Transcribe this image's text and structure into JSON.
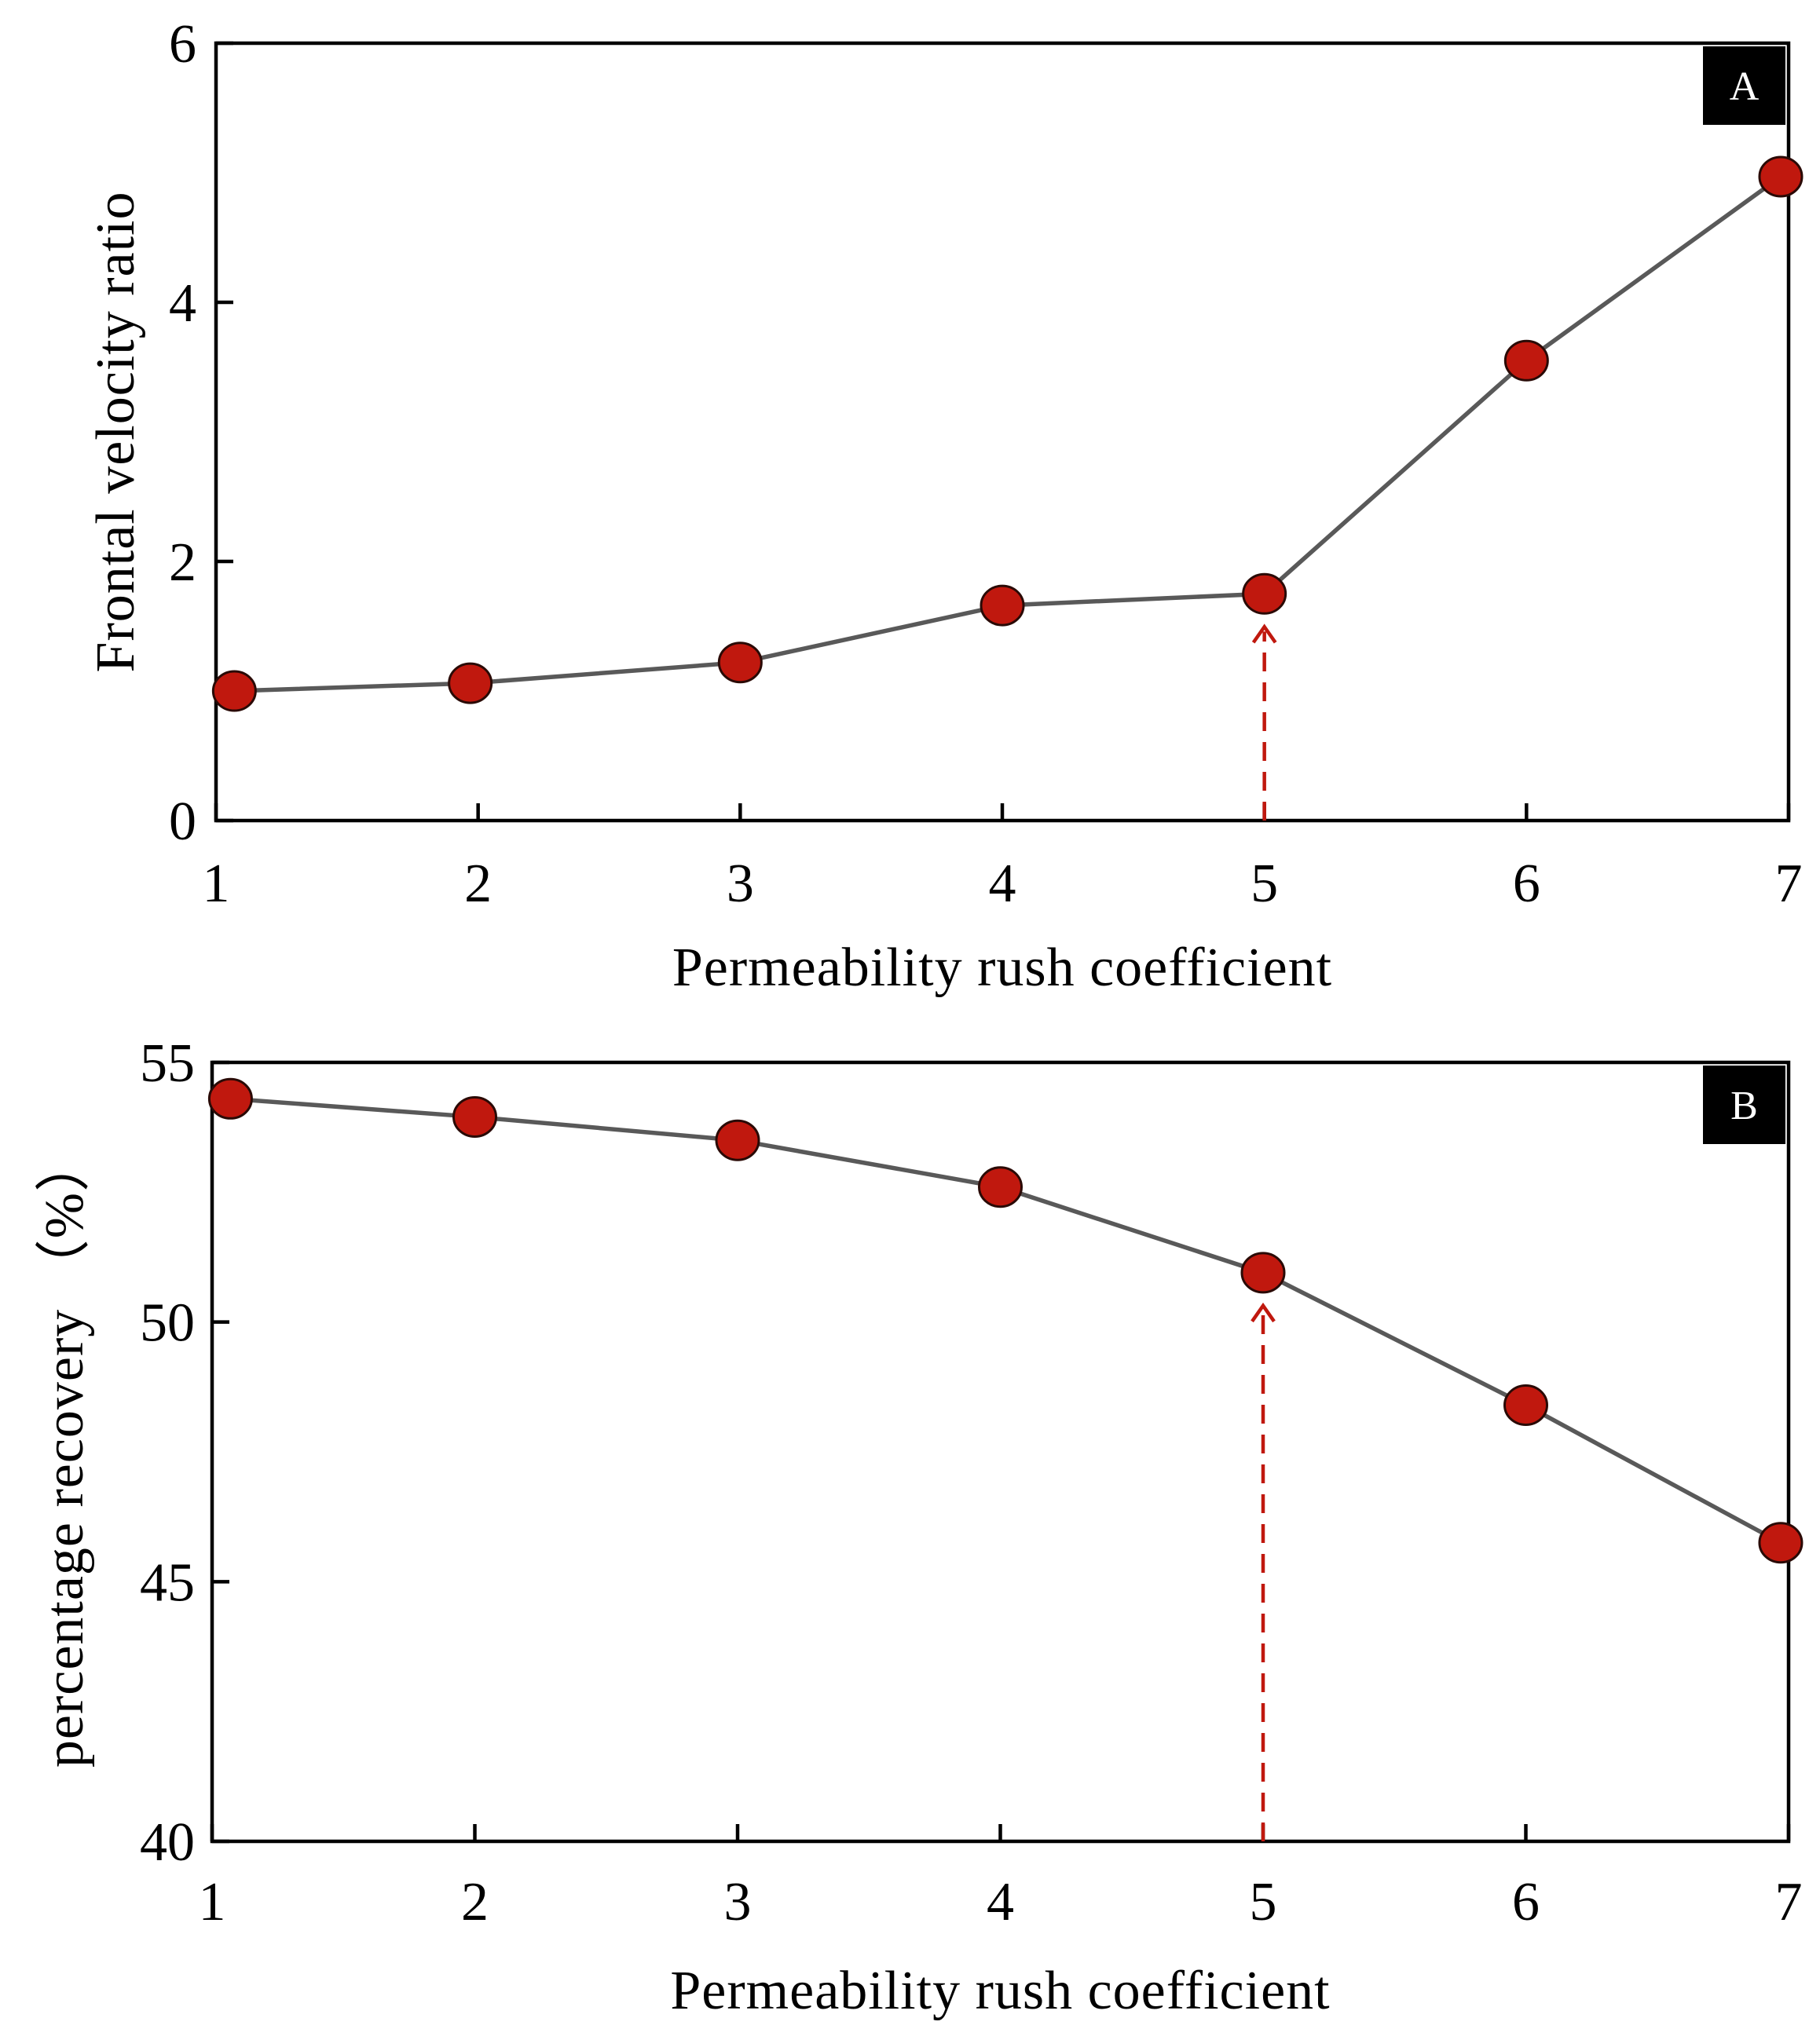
{
  "chart_data": [
    {
      "type": "line",
      "panel_label": "A",
      "xlabel": "Permeability rush coefficient",
      "ylabel": "Frontal velocity ratio",
      "xlim": [
        1,
        7
      ],
      "ylim": [
        0,
        6
      ],
      "xticks": [
        1,
        2,
        3,
        4,
        5,
        6,
        7
      ],
      "yticks": [
        0,
        2,
        4,
        6
      ],
      "x": [
        1.07,
        1.97,
        3.0,
        4.0,
        5.0,
        6.0,
        6.97
      ],
      "y": [
        1.0,
        1.06,
        1.22,
        1.66,
        1.75,
        3.55,
        4.97
      ],
      "marker_color": "#c0180e",
      "line_color": "#595959",
      "arrow_x": 5.0
    },
    {
      "type": "line",
      "panel_label": "B",
      "xlabel": "Permeability rush coefficient",
      "ylabel": "percentage recovery （%）",
      "xlim": [
        1,
        7
      ],
      "ylim": [
        40,
        55
      ],
      "xticks": [
        1,
        2,
        3,
        4,
        5,
        6,
        7
      ],
      "yticks": [
        40,
        45,
        50,
        55
      ],
      "x": [
        1.07,
        2.0,
        3.0,
        4.0,
        5.0,
        6.0,
        6.97
      ],
      "y": [
        54.3,
        53.95,
        53.5,
        52.6,
        50.95,
        48.4,
        45.75
      ],
      "marker_color": "#c0180e",
      "line_color": "#595959",
      "arrow_x": 5.0
    }
  ]
}
